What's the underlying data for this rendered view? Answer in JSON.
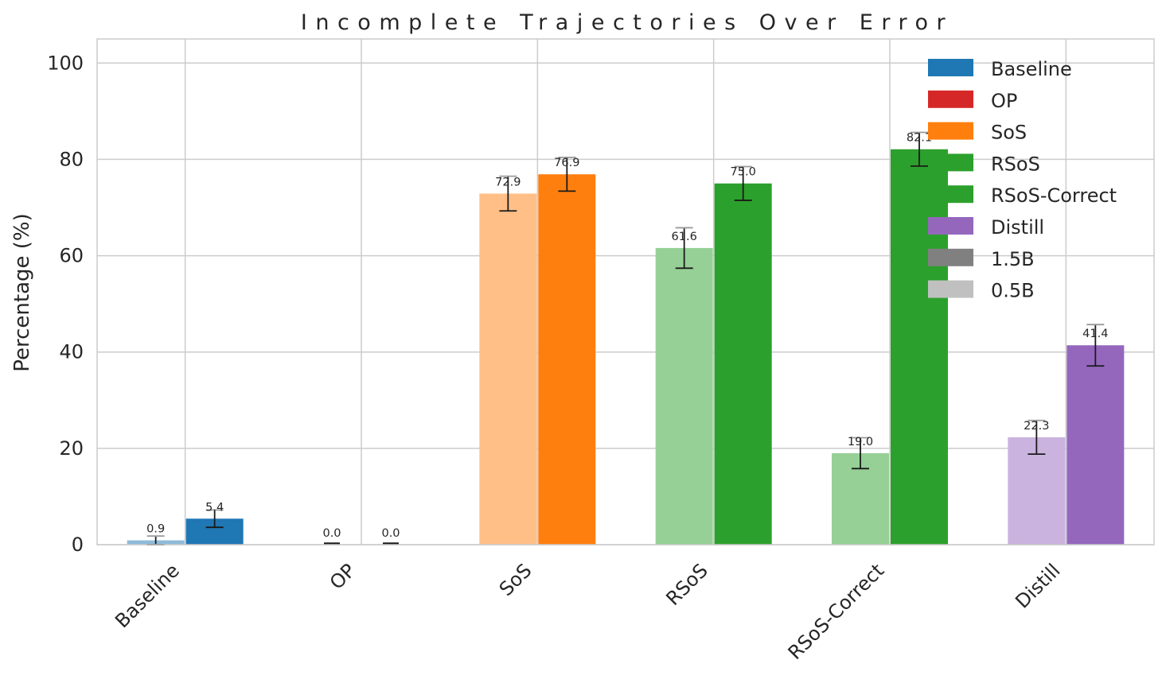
{
  "chart_data": {
    "type": "bar",
    "title": "Incomplete Trajectories Over Error",
    "xlabel": "",
    "ylabel": "Percentage (%)",
    "ylim": [
      0,
      105
    ],
    "yticks": [
      0,
      20,
      40,
      60,
      80,
      100
    ],
    "grid": true,
    "legend_position": "top-right",
    "categories": [
      "Baseline",
      "OP",
      "SoS",
      "RSoS",
      "RSoS-Correct",
      "Distill"
    ],
    "category_colors": [
      "#1f77b4",
      "#d62728",
      "#ff7f0e",
      "#2ca02c",
      "#2ca02c",
      "#9467bd"
    ],
    "series": [
      {
        "name": "0.5B",
        "style": "light",
        "values": [
          0.9,
          0.0,
          72.9,
          61.6,
          19.0,
          22.3
        ],
        "value_labels": [
          "0.9",
          "0.0",
          "72.9",
          "61.6",
          "19.0",
          "22.3"
        ],
        "errors": [
          0.9,
          0.0,
          3.6,
          4.2,
          3.2,
          3.5
        ]
      },
      {
        "name": "1.5B",
        "style": "solid",
        "values": [
          5.4,
          0.0,
          76.9,
          75.0,
          82.1,
          41.4
        ],
        "value_labels": [
          "5.4",
          "0.0",
          "76.9",
          "75.0",
          "82.1",
          "41.4"
        ],
        "errors": [
          1.8,
          0.0,
          3.5,
          3.5,
          3.5,
          4.3
        ]
      }
    ],
    "legend": [
      {
        "label": "Baseline",
        "color": "#1f77b4"
      },
      {
        "label": "OP",
        "color": "#d62728"
      },
      {
        "label": "SoS",
        "color": "#ff7f0e"
      },
      {
        "label": "RSoS",
        "color": "#2ca02c"
      },
      {
        "label": "RSoS-Correct",
        "color": "#2ca02c"
      },
      {
        "label": "Distill",
        "color": "#9467bd"
      },
      {
        "label": "1.5B",
        "color": "#808080"
      },
      {
        "label": "0.5B",
        "color": "#c0c0c0"
      }
    ]
  }
}
